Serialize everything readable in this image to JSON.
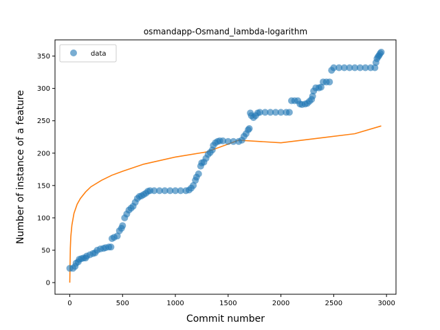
{
  "chart_data": {
    "type": "scatter",
    "title": "osmandapp-Osmand_lambda-logarithm",
    "xlabel": "Commit number",
    "ylabel": "Number of instance of a feature",
    "xlim": [
      -140,
      3090
    ],
    "ylim": [
      -18,
      375
    ],
    "xticks": [
      0,
      500,
      1000,
      1500,
      2000,
      2500,
      3000
    ],
    "yticks": [
      0,
      50,
      100,
      150,
      200,
      250,
      300,
      350
    ],
    "grid": false,
    "legend": {
      "position": "top-left",
      "entries": [
        "data"
      ]
    },
    "series": [
      {
        "name": "data",
        "kind": "scatter",
        "color": "#1f77b4",
        "points": [
          [
            0,
            22
          ],
          [
            30,
            22
          ],
          [
            50,
            25
          ],
          [
            60,
            30
          ],
          [
            80,
            32
          ],
          [
            90,
            36
          ],
          [
            110,
            37
          ],
          [
            130,
            38
          ],
          [
            150,
            38
          ],
          [
            160,
            41
          ],
          [
            190,
            43
          ],
          [
            220,
            45
          ],
          [
            240,
            46
          ],
          [
            260,
            50
          ],
          [
            290,
            52
          ],
          [
            320,
            53
          ],
          [
            340,
            54
          ],
          [
            370,
            55
          ],
          [
            390,
            55
          ],
          [
            400,
            68
          ],
          [
            420,
            70
          ],
          [
            450,
            72
          ],
          [
            470,
            80
          ],
          [
            490,
            84
          ],
          [
            500,
            88
          ],
          [
            520,
            100
          ],
          [
            540,
            106
          ],
          [
            560,
            112
          ],
          [
            580,
            115
          ],
          [
            600,
            118
          ],
          [
            620,
            124
          ],
          [
            640,
            130
          ],
          [
            660,
            133
          ],
          [
            680,
            134
          ],
          [
            700,
            136
          ],
          [
            720,
            138
          ],
          [
            740,
            141
          ],
          [
            760,
            142
          ],
          [
            800,
            142
          ],
          [
            850,
            142
          ],
          [
            900,
            142
          ],
          [
            950,
            142
          ],
          [
            1000,
            142
          ],
          [
            1050,
            142
          ],
          [
            1100,
            142
          ],
          [
            1130,
            143
          ],
          [
            1150,
            146
          ],
          [
            1170,
            150
          ],
          [
            1190,
            158
          ],
          [
            1200,
            163
          ],
          [
            1220,
            168
          ],
          [
            1240,
            180
          ],
          [
            1250,
            185
          ],
          [
            1270,
            186
          ],
          [
            1290,
            192
          ],
          [
            1310,
            198
          ],
          [
            1330,
            201
          ],
          [
            1350,
            205
          ],
          [
            1360,
            212
          ],
          [
            1380,
            216
          ],
          [
            1400,
            218
          ],
          [
            1420,
            219
          ],
          [
            1450,
            219
          ],
          [
            1500,
            218
          ],
          [
            1550,
            218
          ],
          [
            1600,
            218
          ],
          [
            1630,
            220
          ],
          [
            1650,
            226
          ],
          [
            1670,
            230
          ],
          [
            1690,
            236
          ],
          [
            1700,
            238
          ],
          [
            1710,
            262
          ],
          [
            1720,
            258
          ],
          [
            1740,
            255
          ],
          [
            1760,
            258
          ],
          [
            1780,
            262
          ],
          [
            1800,
            263
          ],
          [
            1850,
            263
          ],
          [
            1900,
            263
          ],
          [
            1950,
            263
          ],
          [
            2000,
            263
          ],
          [
            2050,
            263
          ],
          [
            2080,
            263
          ],
          [
            2100,
            281
          ],
          [
            2130,
            281
          ],
          [
            2160,
            281
          ],
          [
            2180,
            276
          ],
          [
            2200,
            275
          ],
          [
            2230,
            276
          ],
          [
            2250,
            277
          ],
          [
            2270,
            280
          ],
          [
            2290,
            283
          ],
          [
            2300,
            288
          ],
          [
            2310,
            296
          ],
          [
            2330,
            301
          ],
          [
            2360,
            301
          ],
          [
            2380,
            302
          ],
          [
            2400,
            310
          ],
          [
            2430,
            310
          ],
          [
            2460,
            310
          ],
          [
            2480,
            328
          ],
          [
            2500,
            332
          ],
          [
            2550,
            332
          ],
          [
            2600,
            332
          ],
          [
            2650,
            332
          ],
          [
            2700,
            332
          ],
          [
            2750,
            332
          ],
          [
            2800,
            332
          ],
          [
            2850,
            332
          ],
          [
            2890,
            332
          ],
          [
            2900,
            340
          ],
          [
            2910,
            346
          ],
          [
            2920,
            349
          ],
          [
            2930,
            351
          ],
          [
            2940,
            354
          ],
          [
            2950,
            356
          ]
        ]
      },
      {
        "kind": "line",
        "color": "#ff7f0e",
        "curve": "logarithmic",
        "points": [
          [
            0,
            0
          ],
          [
            5,
            53
          ],
          [
            10,
            71
          ],
          [
            20,
            89
          ],
          [
            40,
            107
          ],
          [
            70,
            121
          ],
          [
            100,
            130
          ],
          [
            150,
            140
          ],
          [
            200,
            148
          ],
          [
            300,
            158
          ],
          [
            400,
            166
          ],
          [
            500,
            172
          ],
          [
            700,
            183
          ],
          [
            1000,
            194
          ],
          [
            1300,
            202
          ],
          [
            1600,
            220
          ],
          [
            2000,
            216
          ],
          [
            2400,
            224
          ],
          [
            2700,
            230
          ],
          [
            2950,
            242
          ]
        ]
      }
    ]
  }
}
